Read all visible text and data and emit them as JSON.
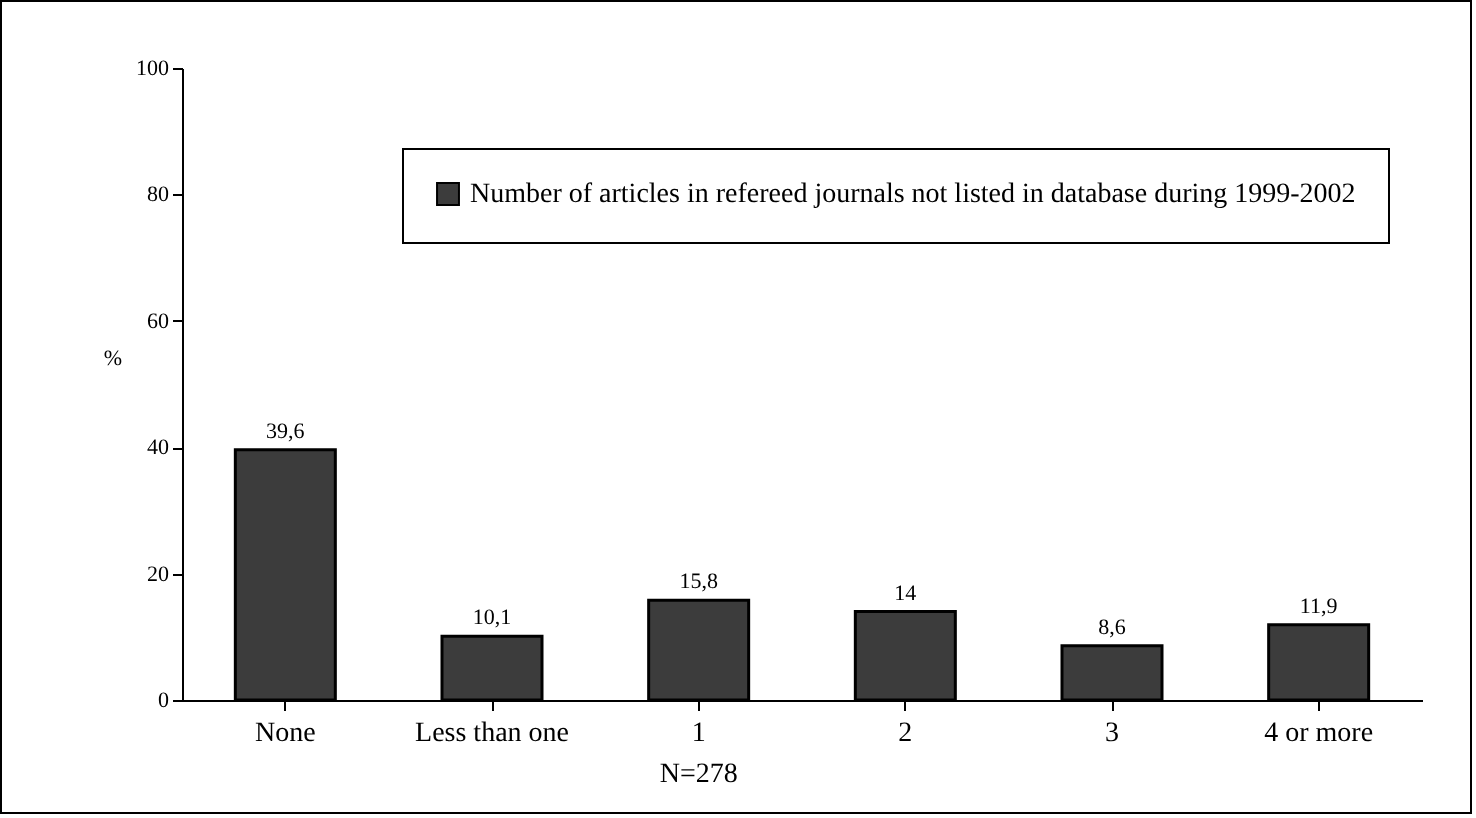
{
  "chart_data": {
    "type": "bar",
    "ylabel": "%",
    "categories": [
      "None",
      "Less than one",
      "1",
      "2",
      "3",
      "4 or more"
    ],
    "series": [
      {
        "name": "Number of articles in refereed journals not listed in database during 1999-2002",
        "color": "#3c3c3c",
        "values": [
          39.6,
          10.1,
          15.8,
          14,
          8.6,
          11.9
        ]
      }
    ],
    "value_labels": [
      "39,6",
      "10,1",
      "15,8",
      "14",
      "8,6",
      "11,9"
    ],
    "ylim": [
      0,
      100
    ],
    "yticks": [
      0,
      20,
      40,
      60,
      80,
      100
    ],
    "grid": false,
    "legend": "top",
    "annotations": [
      "N=278"
    ]
  }
}
